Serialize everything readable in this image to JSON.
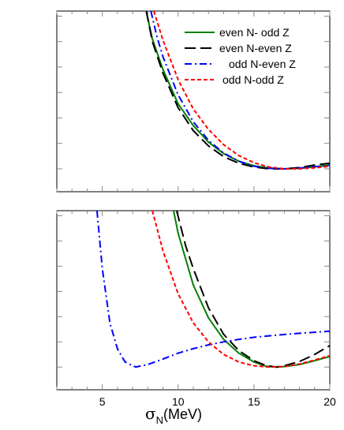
{
  "chart_data": [
    {
      "panel": "top",
      "type": "line",
      "xlim": [
        2,
        20
      ],
      "ylim": [
        -0.9,
        6.2
      ],
      "grid": false,
      "legend_position": "top-right",
      "series": [
        {
          "name": "even N- odd Z",
          "color": "#008000",
          "dash": "solid",
          "x": [
            7.9,
            8.3,
            9,
            10,
            11,
            12,
            13,
            14,
            15,
            16,
            17,
            18,
            19,
            20
          ],
          "y": [
            6.2,
            5.1,
            3.9,
            2.55,
            1.7,
            1.05,
            0.6,
            0.3,
            0.12,
            0.03,
            0.0,
            0.02,
            0.08,
            0.15
          ]
        },
        {
          "name": "even N-even Z",
          "color": "#000000",
          "dash": "longdash",
          "x": [
            7.9,
            8.3,
            9,
            10,
            11,
            12,
            13,
            14,
            15,
            16,
            17,
            18,
            19,
            20
          ],
          "y": [
            6.2,
            5.0,
            3.75,
            2.4,
            1.5,
            0.9,
            0.48,
            0.22,
            0.07,
            0.0,
            0.0,
            0.05,
            0.15,
            0.22
          ]
        },
        {
          "name": "odd N-even Z",
          "color": "#0000ff",
          "dash": "dashdot",
          "x": [
            8.2,
            8.6,
            9,
            10,
            11,
            12,
            13,
            14,
            15,
            16,
            17,
            18,
            19,
            20
          ],
          "y": [
            6.2,
            5.2,
            4.4,
            2.9,
            1.85,
            1.12,
            0.62,
            0.3,
            0.1,
            0.02,
            0.0,
            0.03,
            0.08,
            0.14
          ]
        },
        {
          "name": "odd N-odd Z",
          "color": "#ff0000",
          "dash": "shortdash",
          "x": [
            8.4,
            9,
            10,
            11,
            12,
            13,
            14,
            15,
            16,
            17,
            18,
            19,
            20
          ],
          "y": [
            6.2,
            5.05,
            3.5,
            2.35,
            1.55,
            0.95,
            0.52,
            0.24,
            0.07,
            0.0,
            0.0,
            0.04,
            0.1
          ]
        }
      ]
    },
    {
      "panel": "bottom",
      "type": "line",
      "xlim": [
        2,
        20
      ],
      "ylim": [
        -0.9,
        6.2
      ],
      "xlabel_symbol": "σ",
      "xlabel_sub": "N",
      "xlabel_unit": "(MeV)",
      "x_tick_labels": [
        "5",
        "10",
        "15",
        "20"
      ],
      "grid": false,
      "series": [
        {
          "name": "even N- odd Z",
          "color": "#008000",
          "dash": "solid",
          "x": [
            9.7,
            10,
            11,
            12,
            13,
            14,
            15,
            15.8,
            16.5,
            17,
            18,
            19,
            20
          ],
          "y": [
            6.2,
            5.3,
            3.25,
            1.95,
            1.1,
            0.55,
            0.2,
            0.03,
            0.0,
            0.02,
            0.1,
            0.25,
            0.42
          ]
        },
        {
          "name": "even N-even Z",
          "color": "#000000",
          "dash": "longdash",
          "x": [
            9.9,
            10.5,
            11,
            12,
            13,
            14,
            15,
            15.8,
            16.5,
            17,
            18,
            19,
            20
          ],
          "y": [
            6.2,
            4.8,
            3.9,
            2.35,
            1.3,
            0.65,
            0.25,
            0.06,
            0.0,
            0.05,
            0.22,
            0.5,
            0.85
          ]
        },
        {
          "name": "odd N-even Z",
          "color": "#0000ff",
          "dash": "dashdot",
          "x": [
            4.65,
            5,
            5.5,
            6,
            6.5,
            7.2,
            8,
            9,
            10,
            11,
            12,
            13,
            14,
            15,
            16,
            17,
            18,
            19,
            20
          ],
          "y": [
            6.2,
            3.9,
            1.75,
            0.72,
            0.2,
            0.0,
            0.1,
            0.32,
            0.55,
            0.73,
            0.88,
            1.0,
            1.1,
            1.18,
            1.24,
            1.29,
            1.34,
            1.38,
            1.42
          ]
        },
        {
          "name": "odd N-odd Z",
          "color": "#ff0000",
          "dash": "shortdash",
          "x": [
            8.3,
            9,
            10,
            11,
            12,
            13,
            14,
            15,
            16,
            17,
            18,
            19,
            20
          ],
          "y": [
            6.2,
            4.6,
            2.9,
            1.75,
            1.0,
            0.5,
            0.2,
            0.05,
            0.0,
            0.02,
            0.12,
            0.28,
            0.45
          ]
        }
      ]
    }
  ]
}
